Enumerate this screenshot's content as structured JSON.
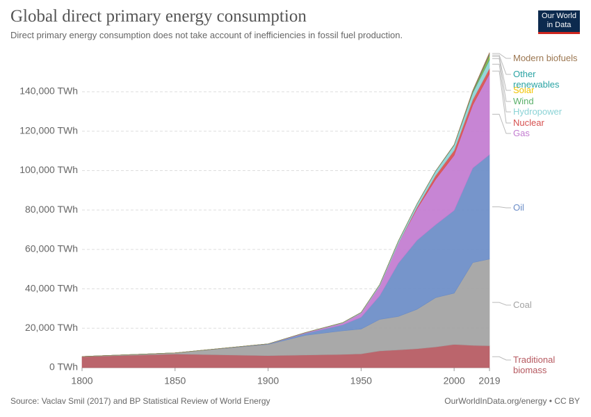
{
  "chart_data": {
    "type": "stacked-area",
    "title": "Global direct primary energy consumption",
    "subtitle": "Direct primary energy consumption does not take account of inefficiencies in fossil fuel production.",
    "logo": "Our World in Data",
    "source": "Source: Vaclav Smil (2017) and BP Statistical Review of World Energy",
    "credit": "OurWorldInData.org/energy • CC BY",
    "x": [
      1800,
      1850,
      1900,
      1920,
      1940,
      1950,
      1960,
      1970,
      1980,
      1990,
      2000,
      2010,
      2019
    ],
    "xlim": [
      1800,
      2019
    ],
    "xticks": [
      1800,
      1850,
      1900,
      1950,
      2000,
      2019
    ],
    "ylim": [
      0,
      160000
    ],
    "yticks": [
      {
        "value": 0,
        "label": "0 TWh"
      },
      {
        "value": 20000,
        "label": "20,000 TWh"
      },
      {
        "value": 40000,
        "label": "40,000 TWh"
      },
      {
        "value": 60000,
        "label": "60,000 TWh"
      },
      {
        "value": 80000,
        "label": "80,000 TWh"
      },
      {
        "value": 100000,
        "label": "100,000 TWh"
      },
      {
        "value": 120000,
        "label": "120,000 TWh"
      },
      {
        "value": 140000,
        "label": "140,000 TWh"
      }
    ],
    "grid": true,
    "series": [
      {
        "name": "Traditional biomass",
        "color": "#b5585f",
        "values": [
          5560,
          6900,
          6100,
          6400,
          6700,
          7000,
          8500,
          9000,
          9600,
          10500,
          11800,
          11300,
          11100
        ]
      },
      {
        "name": "Coal",
        "color": "#a2a2a2",
        "values": [
          97,
          600,
          5700,
          10000,
          12000,
          12600,
          16000,
          17000,
          20000,
          25000,
          26000,
          42000,
          44000
        ]
      },
      {
        "name": "Oil",
        "color": "#6a8cc7",
        "values": [
          0,
          0,
          200,
          1000,
          3000,
          6000,
          12000,
          27000,
          35000,
          37000,
          42000,
          48000,
          53000
        ]
      },
      {
        "name": "Gas",
        "color": "#c27bd0",
        "values": [
          0,
          0,
          60,
          300,
          900,
          2100,
          5000,
          10000,
          16000,
          23000,
          28000,
          32000,
          41000
        ]
      },
      {
        "name": "Nuclear",
        "color": "#d6504f",
        "values": [
          0,
          0,
          0,
          0,
          0,
          0,
          0,
          30,
          700,
          2000,
          2500,
          2700,
          2800
        ]
      },
      {
        "name": "Hydropower",
        "color": "#8cd3d6",
        "values": [
          0,
          0,
          20,
          100,
          200,
          330,
          690,
          1200,
          1700,
          2100,
          2600,
          3400,
          4200
        ]
      },
      {
        "name": "Wind",
        "color": "#5ab06a",
        "values": [
          0,
          0,
          0,
          0,
          0,
          0,
          0,
          0,
          0,
          0,
          30,
          340,
          1400
        ]
      },
      {
        "name": "Solar",
        "color": "#f2c300",
        "values": [
          0,
          0,
          0,
          0,
          0,
          0,
          0,
          0,
          0,
          0,
          0,
          30,
          700
        ]
      },
      {
        "name": "Other renewables",
        "color": "#29a3a3",
        "values": [
          0,
          0,
          0,
          0,
          0,
          0,
          0,
          0,
          40,
          100,
          150,
          300,
          700
        ]
      },
      {
        "name": "Modern biofuels",
        "color": "#9b7650",
        "values": [
          0,
          0,
          0,
          0,
          0,
          0,
          0,
          0,
          0,
          50,
          100,
          600,
          1000
        ]
      }
    ]
  }
}
